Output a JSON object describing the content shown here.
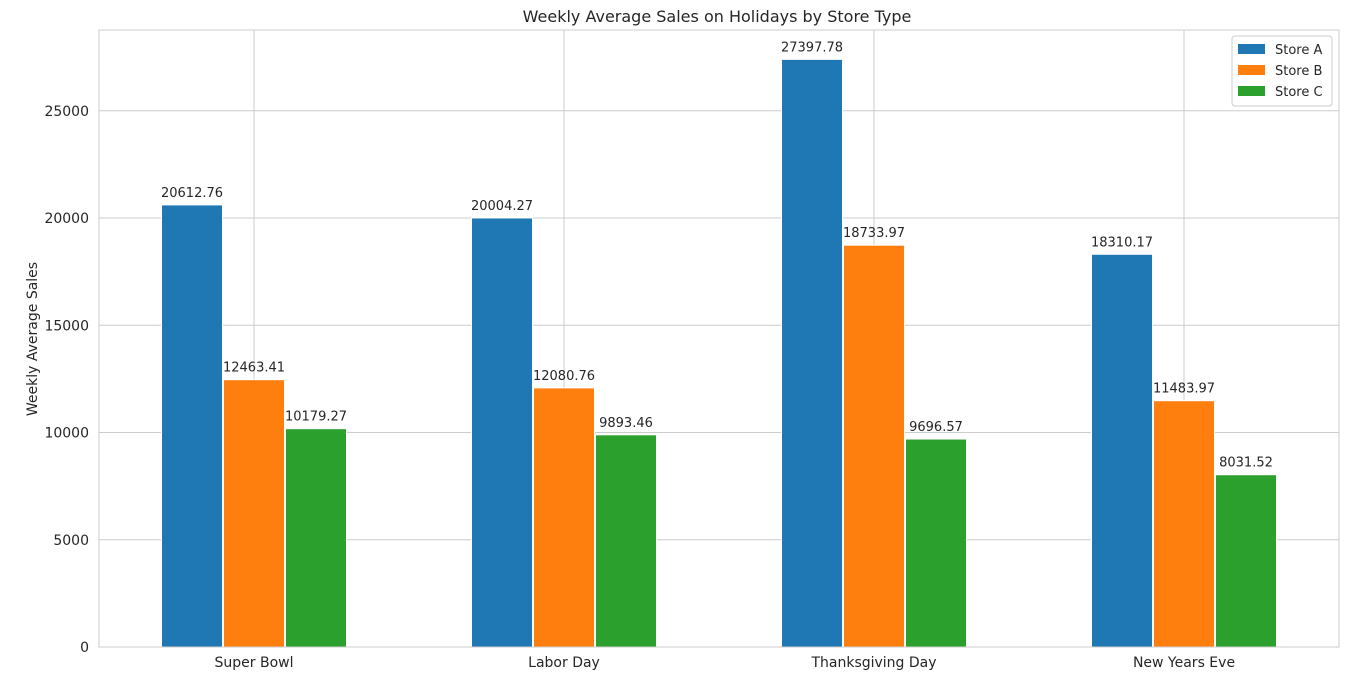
{
  "chart_data": {
    "type": "bar",
    "title": "Weekly Average Sales on Holidays by Store Type",
    "xlabel": "",
    "ylabel": "Weekly Average Sales",
    "categories": [
      "Super Bowl",
      "Labor Day",
      "Thanksgiving Day",
      "New Years Eve"
    ],
    "series": [
      {
        "name": "Store A",
        "color": "#1f77b4",
        "values": [
          20612.76,
          20004.27,
          27397.78,
          18310.17
        ]
      },
      {
        "name": "Store B",
        "color": "#ff7f0e",
        "values": [
          12463.41,
          12080.76,
          18733.97,
          11483.97
        ]
      },
      {
        "name": "Store C",
        "color": "#2ca02c",
        "values": [
          10179.27,
          9893.46,
          9696.57,
          8031.52
        ]
      }
    ],
    "ylim": [
      0,
      28767.67
    ],
    "yticks": [
      0,
      5000,
      10000,
      15000,
      20000,
      25000
    ],
    "grid": true,
    "legend_position": "top-right"
  }
}
